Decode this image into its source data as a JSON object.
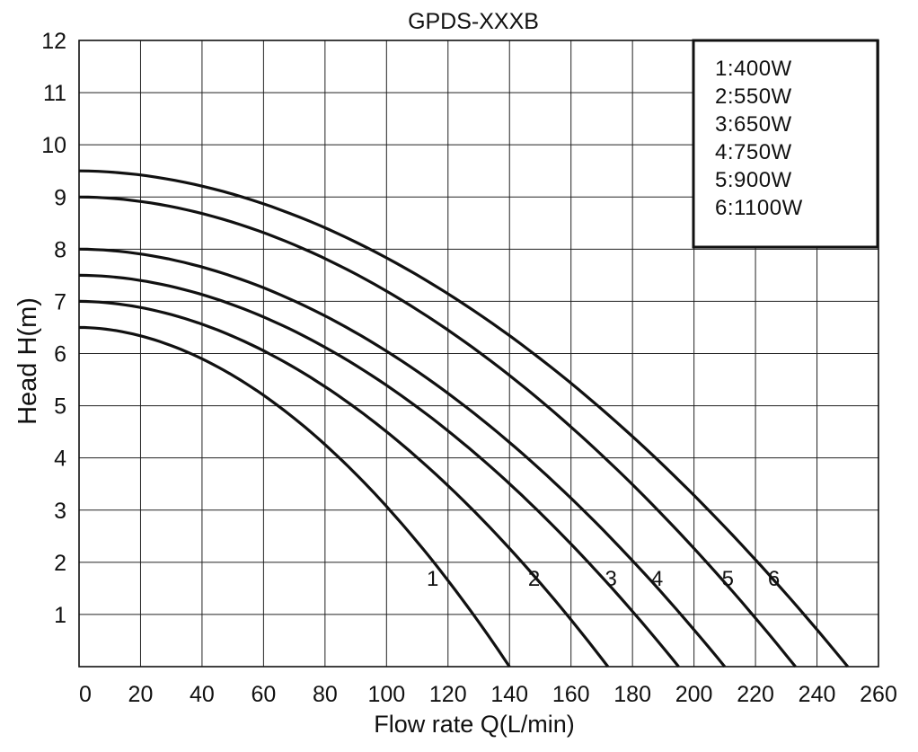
{
  "chart_data": {
    "type": "line",
    "title": "GPDS-XXXB",
    "xlabel": "Flow rate Q(L/min)",
    "ylabel": "Head H(m)",
    "xlim": [
      0,
      260
    ],
    "ylim": [
      0,
      12
    ],
    "xticks": [
      0,
      20,
      40,
      60,
      80,
      100,
      120,
      140,
      160,
      180,
      200,
      220,
      240,
      260
    ],
    "yticks": [
      1,
      2,
      3,
      4,
      5,
      6,
      7,
      8,
      9,
      10,
      11,
      12
    ],
    "grid": true,
    "legend_position": "top-right",
    "legend": [
      "1:400W",
      "2:550W",
      "3:650W",
      "4:750W",
      "5:900W",
      "6:1100W"
    ],
    "series": [
      {
        "name": "1",
        "shutoff_head": 6.5,
        "max_flow": 140,
        "label_at": [
          115,
          2
        ]
      },
      {
        "name": "2",
        "shutoff_head": 7.0,
        "max_flow": 172,
        "label_at": [
          148,
          2
        ]
      },
      {
        "name": "3",
        "shutoff_head": 7.5,
        "max_flow": 195,
        "label_at": [
          173,
          2
        ]
      },
      {
        "name": "4",
        "shutoff_head": 8.0,
        "max_flow": 210,
        "label_at": [
          188,
          2
        ]
      },
      {
        "name": "5",
        "shutoff_head": 9.0,
        "max_flow": 233,
        "label_at": [
          211,
          2
        ]
      },
      {
        "name": "6",
        "shutoff_head": 9.5,
        "max_flow": 250,
        "label_at": [
          226,
          2
        ]
      }
    ]
  }
}
